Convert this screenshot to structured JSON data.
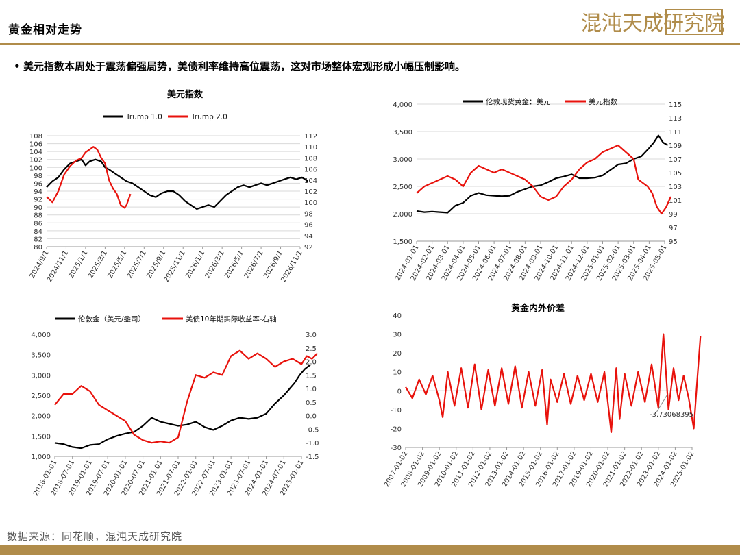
{
  "header": {
    "title": "黄金相对走势",
    "logo_text": "混沌天成研究院",
    "accent_color": "#b08c4a"
  },
  "bullet": "美元指数本周处于震荡偏强局势，美债利率维持高位震荡，这对市场整体宏观形成小幅压制影响。",
  "footer": {
    "source": "数据来源：同花顺，混沌天成研究院"
  },
  "chart_data": [
    {
      "type": "line",
      "title": "美元指数",
      "legend_position": "top",
      "grid": true,
      "x_ticks": [
        "2024/9/1",
        "2024/11/1",
        "2025/1/1",
        "2025/3/1",
        "2025/5/1",
        "2025/7/1",
        "2025/9/1",
        "2025/11/1",
        "2026/1/1",
        "2026/3/1",
        "2026/5/1",
        "2026/7/1",
        "2026/9/1",
        "2026/11/1"
      ],
      "y_left_ticks": [
        "80",
        "82",
        "84",
        "86",
        "88",
        "90",
        "92",
        "94",
        "96",
        "98",
        "100",
        "102",
        "104",
        "106",
        "108"
      ],
      "y_right_ticks": [
        "92",
        "94",
        "96",
        "98",
        "100",
        "102",
        "104",
        "106",
        "108",
        "110",
        "112"
      ],
      "ylim_left": [
        80,
        108
      ],
      "ylim_right": [
        92,
        112
      ],
      "series": [
        {
          "name": "Trump 1.0",
          "color": "#000000",
          "axis": "left",
          "x": [
            0,
            0.3,
            0.6,
            0.9,
            1.2,
            1.5,
            1.8,
            2.0,
            2.2,
            2.5,
            2.8,
            3.0,
            3.2,
            3.5,
            3.8,
            4.1,
            4.4,
            4.7,
            5.0,
            5.3,
            5.6,
            5.9,
            6.2,
            6.5,
            6.8,
            7.1,
            7.4,
            7.7,
            8.0,
            8.3,
            8.6,
            8.9,
            9.2,
            9.5,
            9.8,
            10.1,
            10.4,
            10.7,
            11.0,
            11.3,
            11.6,
            11.9,
            12.2,
            12.5,
            12.8,
            13.1,
            13.4
          ],
          "values": [
            95,
            96.5,
            97.5,
            99.5,
            101,
            101.5,
            102,
            100.5,
            101.5,
            102,
            101.5,
            100,
            99.5,
            98.5,
            97.5,
            96.5,
            96,
            95,
            94,
            93,
            92.5,
            93.5,
            94,
            94,
            93,
            91.5,
            90.5,
            89.5,
            90,
            90.5,
            90,
            91.5,
            93,
            94,
            95,
            95.5,
            95,
            95.5,
            96,
            95.5,
            96,
            96.5,
            97,
            97.5,
            97,
            97.5,
            96.5
          ]
        },
        {
          "name": "Trump 2.0",
          "color": "#e8120c",
          "axis": "right",
          "x": [
            0,
            0.3,
            0.6,
            0.9,
            1.2,
            1.5,
            1.8,
            2.0,
            2.2,
            2.4,
            2.6,
            2.8,
            3.0,
            3.2,
            3.4,
            3.6,
            3.8,
            4.0,
            4.1,
            4.3
          ],
          "values": [
            101,
            100,
            102,
            105,
            106.5,
            107.5,
            108,
            109,
            109.5,
            110,
            109.5,
            108,
            107,
            104,
            102.5,
            101.5,
            99.5,
            99,
            99.5,
            101.5
          ]
        }
      ]
    },
    {
      "type": "line",
      "title": "",
      "legend_position": "top",
      "grid": true,
      "x_ticks": [
        "2024-01-01",
        "2024-02-01",
        "2024-03-01",
        "2024-04-01",
        "2024-05-01",
        "2024-06-01",
        "2024-07-01",
        "2024-08-01",
        "2024-09-01",
        "2024-10-01",
        "2024-11-01",
        "2024-12-01",
        "2025-01-01",
        "2025-02-01",
        "2025-03-01",
        "2025-04-01",
        "2025-05-01"
      ],
      "y_left_ticks": [
        "1,500",
        "2,000",
        "2,500",
        "3,000",
        "3,500",
        "4,000"
      ],
      "y_right_ticks": [
        "95",
        "97",
        "99",
        "101",
        "103",
        "105",
        "107",
        "109",
        "111",
        "113",
        "115"
      ],
      "ylim_left": [
        1500,
        4000
      ],
      "ylim_right": [
        95,
        115
      ],
      "series": [
        {
          "name": "伦敦现货黄金：美元",
          "color": "#000000",
          "axis": "left",
          "x": [
            0,
            0.5,
            1,
            1.5,
            2,
            2.5,
            3,
            3.5,
            4,
            4.5,
            5,
            5.5,
            6,
            6.5,
            7,
            7.5,
            8,
            8.5,
            9,
            9.5,
            10,
            10.5,
            11,
            11.5,
            12,
            12.5,
            13,
            13.5,
            14,
            14.5,
            15,
            15.3,
            15.6,
            15.9,
            16.2
          ],
          "values": [
            2050,
            2030,
            2040,
            2030,
            2020,
            2150,
            2200,
            2330,
            2380,
            2340,
            2330,
            2320,
            2330,
            2400,
            2450,
            2500,
            2520,
            2580,
            2650,
            2680,
            2720,
            2650,
            2650,
            2660,
            2700,
            2800,
            2900,
            2920,
            3000,
            3050,
            3200,
            3300,
            3430,
            3300,
            3250
          ]
        },
        {
          "name": "美元指数",
          "color": "#e8120c",
          "axis": "right",
          "x": [
            0,
            0.5,
            1,
            1.5,
            2,
            2.5,
            3,
            3.5,
            4,
            4.5,
            5,
            5.5,
            6,
            6.5,
            7,
            7.5,
            8,
            8.5,
            9,
            9.5,
            10,
            10.5,
            11,
            11.5,
            12,
            12.5,
            13,
            13.5,
            14,
            14.3,
            14.6,
            14.9,
            15.2,
            15.5,
            15.8,
            16.1,
            16.4
          ],
          "values": [
            102,
            103,
            103.5,
            104,
            104.5,
            104,
            103,
            105,
            106,
            105.5,
            105,
            105.5,
            105,
            104.5,
            104,
            103,
            101.5,
            101,
            101.5,
            103,
            104,
            105.5,
            106.5,
            107,
            108,
            108.5,
            109,
            108,
            107,
            104,
            103.5,
            103,
            102,
            100,
            99,
            100,
            101.5
          ]
        }
      ]
    },
    {
      "type": "line",
      "title": "",
      "legend_position": "top",
      "grid": false,
      "x_ticks": [
        "2018-01-01",
        "2018-07-01",
        "2019-01-01",
        "2019-07-01",
        "2020-01-01",
        "2020-07-01",
        "2021-01-01",
        "2021-07-01",
        "2022-01-01",
        "2022-07-01",
        "2023-01-01",
        "2023-07-01",
        "2024-01-01",
        "2024-07-01",
        "2025-01-01"
      ],
      "y_left_ticks": [
        "1,000",
        "1,500",
        "2,000",
        "2,500",
        "3,000",
        "3,500",
        "4,000"
      ],
      "y_right_ticks": [
        "-1.5",
        "-1.0",
        "-0.5",
        "0.0",
        "0.5",
        "1.0",
        "1.5",
        "2.0",
        "2.5",
        "3.0"
      ],
      "ylim_left": [
        1000,
        4000
      ],
      "ylim_right": [
        -1.5,
        3.0
      ],
      "series": [
        {
          "name": "伦敦金（美元/盎司）",
          "color": "#000000",
          "axis": "left",
          "x": [
            0,
            0.5,
            1,
            1.5,
            2,
            2.5,
            3,
            3.5,
            4,
            4.5,
            5,
            5.5,
            6,
            6.5,
            7,
            7.5,
            8,
            8.5,
            9,
            9.5,
            10,
            10.5,
            11,
            11.5,
            12,
            12.5,
            13,
            13.3,
            13.6,
            13.9,
            14.2,
            14.5
          ],
          "values": [
            1330,
            1300,
            1230,
            1200,
            1280,
            1300,
            1420,
            1500,
            1560,
            1600,
            1750,
            1950,
            1850,
            1800,
            1750,
            1780,
            1850,
            1720,
            1650,
            1750,
            1880,
            1950,
            1920,
            1950,
            2050,
            2300,
            2500,
            2650,
            2800,
            3000,
            3150,
            3250
          ]
        },
        {
          "name": "美债10年期实际收益率-右轴",
          "color": "#e8120c",
          "axis": "right",
          "x": [
            0,
            0.5,
            1,
            1.5,
            2,
            2.5,
            3,
            3.5,
            4,
            4.5,
            5,
            5.5,
            6,
            6.5,
            7,
            7.5,
            8,
            8.5,
            9,
            9.5,
            10,
            10.5,
            11,
            11.5,
            12,
            12.5,
            13,
            13.5,
            14,
            14.3,
            14.6,
            14.9
          ],
          "values": [
            0.4,
            0.8,
            0.8,
            1.1,
            0.9,
            0.4,
            0.2,
            0.0,
            -0.2,
            -0.7,
            -0.9,
            -1.0,
            -0.95,
            -1.0,
            -0.8,
            0.5,
            1.5,
            1.4,
            1.6,
            1.5,
            2.2,
            2.4,
            2.1,
            2.3,
            2.1,
            1.8,
            2.0,
            2.1,
            1.9,
            2.2,
            2.1,
            2.3
          ]
        }
      ]
    },
    {
      "type": "line",
      "title": "黄金内外价差",
      "legend_position": "none",
      "grid": false,
      "x_ticks": [
        "2007-01-02",
        "2008-01-02",
        "2009-01-02",
        "2010-01-02",
        "2011-01-02",
        "2012-01-02",
        "2013-01-02",
        "2014-01-02",
        "2015-01-02",
        "2016-01-02",
        "2017-01-02",
        "2019-01-02",
        "2020-01-02",
        "2021-01-02",
        "2022-01-02",
        "2023-01-02",
        "2024-01-02",
        "2025-01-02"
      ],
      "y_ticks": [
        "-30",
        "-20",
        "-10",
        "0",
        "10",
        "20",
        "30",
        "40"
      ],
      "ylim": [
        -30,
        40
      ],
      "annotation": "-3.73068395",
      "series": [
        {
          "name": "黄金内外价差",
          "color": "#e8120c",
          "x": [
            0,
            0.4,
            0.8,
            1.2,
            1.6,
            2.0,
            2.2,
            2.5,
            2.9,
            3.3,
            3.7,
            4.1,
            4.5,
            4.9,
            5.3,
            5.7,
            6.1,
            6.5,
            6.9,
            7.3,
            7.7,
            8.1,
            8.4,
            8.6,
            9.0,
            9.4,
            9.8,
            10.2,
            10.6,
            11.0,
            11.4,
            11.8,
            12.2,
            12.5,
            12.7,
            13.0,
            13.4,
            13.8,
            14.2,
            14.6,
            15.0,
            15.3,
            15.6,
            15.9,
            16.2,
            16.5,
            16.8,
            17.1,
            17.3,
            17.5
          ],
          "values": [
            2,
            -4,
            6,
            -2,
            8,
            -5,
            -14,
            10,
            -8,
            12,
            -9,
            14,
            -10,
            11,
            -8,
            12,
            -7,
            13,
            -9,
            10,
            -8,
            11,
            -18,
            6,
            -6,
            9,
            -7,
            8,
            -5,
            9,
            -6,
            10,
            -22,
            12,
            -15,
            9,
            -8,
            10,
            -6,
            14,
            -9,
            30,
            -10,
            12,
            -5,
            8,
            -4,
            -20,
            5,
            29
          ]
        }
      ]
    }
  ]
}
